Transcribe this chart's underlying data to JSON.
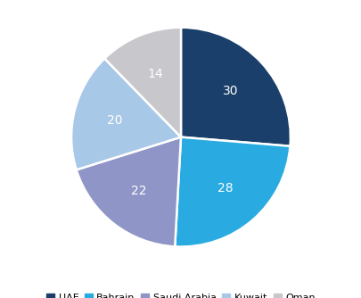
{
  "labels": [
    "UAE",
    "Bahrain",
    "Saudi Arabia",
    "Kuwait",
    "Oman"
  ],
  "values": [
    30,
    28,
    22,
    20,
    14
  ],
  "colors": [
    "#1b3f6b",
    "#29abe2",
    "#8f95c6",
    "#a8c8e8",
    "#c8c8cc"
  ],
  "text_color": "#ffffff",
  "legend_labels": [
    "UAE",
    "Bahrain",
    "Saudi Arabia",
    "Kuwait",
    "Oman"
  ],
  "legend_colors": [
    "#1b3f6b",
    "#29abe2",
    "#8f95c6",
    "#a8c8e8",
    "#c8c8cc"
  ],
  "background_color": "#ffffff",
  "startangle": 90,
  "label_fontsize": 10,
  "legend_fontsize": 8
}
